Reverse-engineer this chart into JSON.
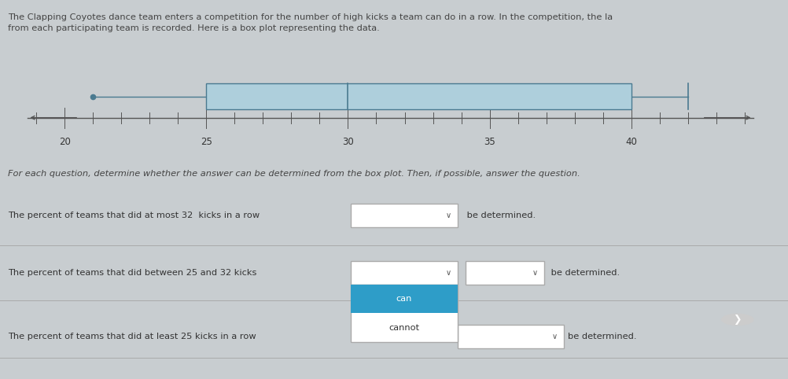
{
  "title_line1": "The Clapping Coyotes dance team enters a competition for the number of high kicks a team can do in a row. In the competition, the la",
  "title_line2": "from each participating team is recorded. Here is a box plot representing the data.",
  "subtitle_text": "For each question, determine whether the answer can be determined from the box plot. Then, if possible, answer the question.",
  "bg_color": "#c8cdd0",
  "boxplot_panel_bg": "#c8cdd0",
  "boxplot_white_bg": "#d0d5d8",
  "box_fill_color": "#aecfdc",
  "box_line_color": "#4a7a90",
  "whisker_color": "#4a7a90",
  "axis_line_color": "#555555",
  "min_val": 21,
  "q1": 25,
  "median": 30,
  "q3": 40,
  "max_val": 42,
  "xmin": 19,
  "xmax": 44,
  "axis_ticks": [
    20,
    25,
    30,
    35,
    40
  ],
  "row1_text": "The percent of teams that did at most 32  kicks in a row",
  "row2_text": "The percent of teams that did between 25 and 32 kicks",
  "row3_text": "The percent of teams that did at least 25 kicks in a row",
  "suffix": " be determined.",
  "suffix3": "be determined.",
  "dropdown_selected_color": "#2e9dc8",
  "dropdown_bg": "#ffffff",
  "dropdown_border": "#aaaaaa",
  "font_color": "#333333",
  "font_color_title": "#444444",
  "icon1_color": "#3ab5b0",
  "icon2_color": "#3a8fa0",
  "separator_color": "#aaaaaa",
  "chevron_color": "#cccccc"
}
